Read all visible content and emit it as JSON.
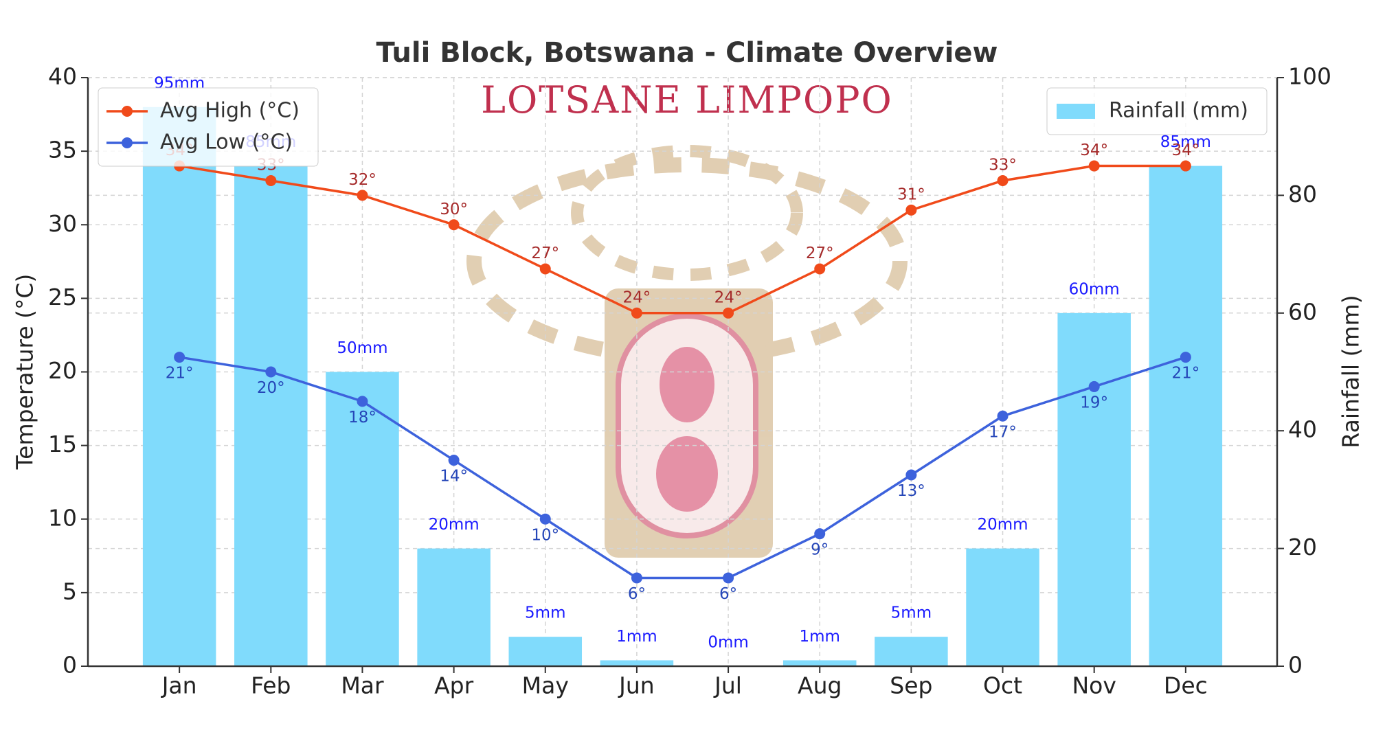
{
  "chart_data": {
    "type": "combo",
    "title": "Tuli Block, Botswana - Climate Overview",
    "watermark": "LOTSANE LIMPOPO",
    "y_label": "Temperature (°C)",
    "y2_label": "Rainfall (mm)",
    "categories": [
      "Jan",
      "Feb",
      "Mar",
      "Apr",
      "May",
      "Jun",
      "Jul",
      "Aug",
      "Sep",
      "Oct",
      "Nov",
      "Dec"
    ],
    "series": [
      {
        "name": "Avg High (°C)",
        "type": "line",
        "color": "#f04a1a",
        "label_color": "#a52a2a",
        "values": [
          34,
          33,
          32,
          30,
          27,
          24,
          24,
          27,
          31,
          33,
          34,
          34
        ],
        "value_labels": [
          "34°",
          "33°",
          "32°",
          "30°",
          "27°",
          "24°",
          "24°",
          "27°",
          "31°",
          "33°",
          "34°",
          "34°"
        ]
      },
      {
        "name": "Avg Low (°C)",
        "type": "line",
        "color": "#3d62dc",
        "label_color": "#2546b8",
        "values": [
          21,
          20,
          18,
          14,
          10,
          6,
          6,
          9,
          13,
          17,
          19,
          21
        ],
        "value_labels": [
          "21°",
          "20°",
          "18°",
          "14°",
          "10°",
          "6°",
          "6°",
          "9°",
          "13°",
          "17°",
          "19°",
          "21°"
        ]
      },
      {
        "name": "Rainfall (mm)",
        "type": "bar",
        "axis": "y2",
        "color": "#80dbfc",
        "label_color": "#1a1aff",
        "values": [
          95,
          85,
          50,
          20,
          5,
          1,
          0,
          1,
          5,
          20,
          60,
          85
        ],
        "value_labels": [
          "95mm",
          "85mm",
          "50mm",
          "20mm",
          "5mm",
          "1mm",
          "0mm",
          "1mm",
          "5mm",
          "20mm",
          "60mm",
          "85mm"
        ]
      }
    ],
    "ylim": [
      0,
      40
    ],
    "yticks": [
      0,
      5,
      10,
      15,
      20,
      25,
      30,
      35,
      40
    ],
    "y2lim": [
      0,
      100
    ],
    "y2ticks": [
      0,
      20,
      40,
      60,
      80,
      100
    ],
    "grid": true,
    "legend": "upper left",
    "legend2": "upper right"
  }
}
